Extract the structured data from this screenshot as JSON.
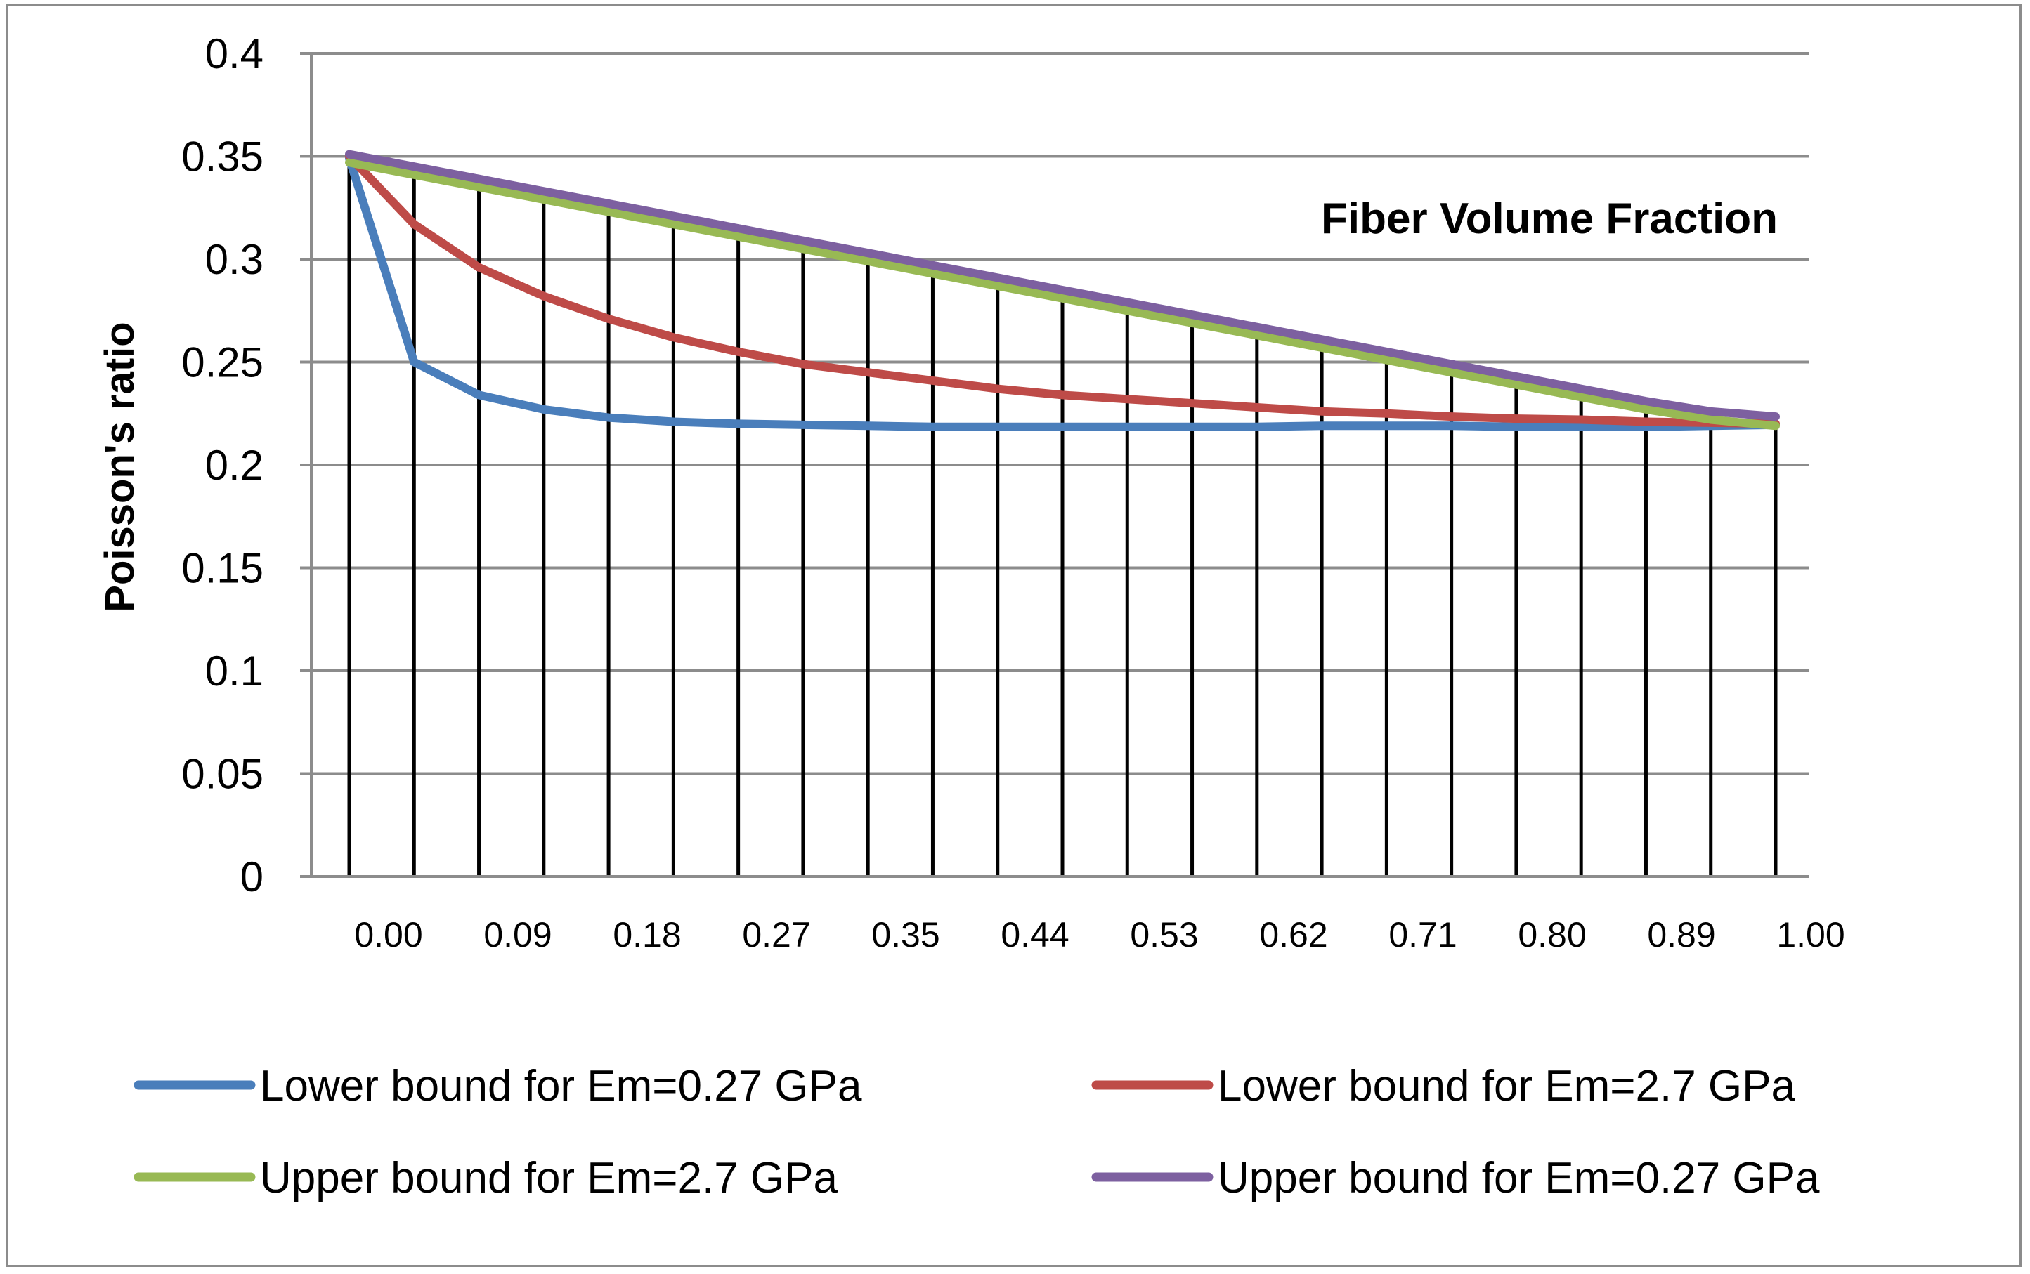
{
  "chart_data": {
    "type": "line",
    "title": "",
    "xlabel": "",
    "ylabel": "Poisson's ratio",
    "annotation": "Fiber Volume Fraction",
    "ylim": [
      0,
      0.4
    ],
    "y_ticks": [
      "0",
      "0.05",
      "0.1",
      "0.15",
      "0.2",
      "0.25",
      "0.3",
      "0.35",
      "0.4"
    ],
    "x_tick_labels": [
      "0.00",
      "0.09",
      "0.18",
      "0.27",
      "0.35",
      "0.44",
      "0.53",
      "0.62",
      "0.71",
      "0.80",
      "0.89",
      "1.00"
    ],
    "grid": true,
    "drop_lines": true,
    "legend_position": "bottom",
    "series": [
      {
        "name": "Lower bound for Em=0.27 GPa",
        "color": "#4a7ebb",
        "values": [
          0.349,
          0.25,
          0.234,
          0.227,
          0.223,
          0.221,
          0.22,
          0.2195,
          0.219,
          0.2185,
          0.2185,
          0.2185,
          0.2185,
          0.2185,
          0.2185,
          0.219,
          0.219,
          0.219,
          0.2185,
          0.2185,
          0.2185,
          0.219,
          0.2195
        ]
      },
      {
        "name": "Lower bound for Em=2.7 GPa",
        "color": "#be4b48",
        "values": [
          0.35,
          0.317,
          0.296,
          0.282,
          0.271,
          0.262,
          0.255,
          0.249,
          0.245,
          0.241,
          0.237,
          0.234,
          0.232,
          0.23,
          0.228,
          0.226,
          0.225,
          0.2235,
          0.2225,
          0.222,
          0.221,
          0.2205,
          0.22
        ]
      },
      {
        "name": "Upper bound for Em=2.7 GPa",
        "color": "#98b954",
        "values": [
          0.347,
          0.341,
          0.335,
          0.329,
          0.323,
          0.317,
          0.311,
          0.305,
          0.299,
          0.293,
          0.287,
          0.281,
          0.275,
          0.269,
          0.263,
          0.257,
          0.251,
          0.245,
          0.239,
          0.233,
          0.227,
          0.222,
          0.219
        ]
      },
      {
        "name": "Upper bound for Em=0.27 GPa",
        "color": "#7d60a0",
        "values": [
          0.351,
          0.345,
          0.339,
          0.333,
          0.327,
          0.321,
          0.315,
          0.309,
          0.303,
          0.297,
          0.291,
          0.285,
          0.279,
          0.273,
          0.267,
          0.261,
          0.255,
          0.249,
          0.243,
          0.237,
          0.231,
          0.226,
          0.2235
        ]
      }
    ],
    "legend": [
      "Lower bound for Em=0.27 GPa",
      "Lower bound for Em=2.7 GPa",
      "Upper bound for Em=2.7 GPa",
      "Upper bound for Em=0.27 GPa"
    ]
  }
}
